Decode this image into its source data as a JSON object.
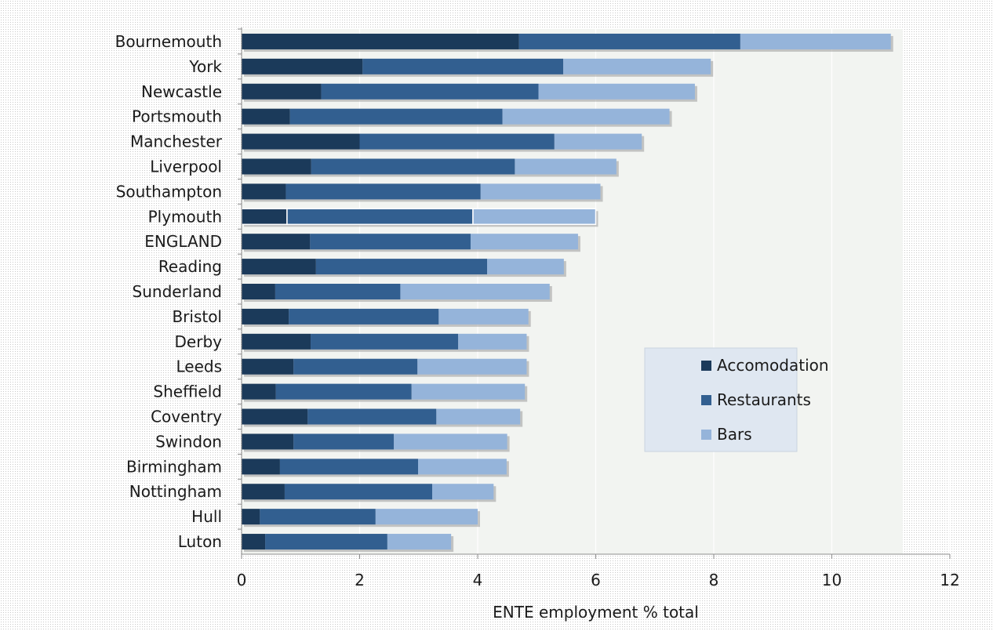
{
  "chart_data": {
    "type": "bar",
    "orientation": "horizontal",
    "stacked": true,
    "categories": [
      "Bournemouth",
      "York",
      "Newcastle",
      "Portsmouth",
      "Manchester",
      "Liverpool",
      "Southampton",
      "Plymouth",
      "ENGLAND",
      "Reading",
      "Sunderland",
      "Bristol",
      "Derby",
      "Leeds",
      "Sheffield",
      "Coventry",
      "Swindon",
      "Birmingham",
      "Nottingham",
      "Hull",
      "Luton"
    ],
    "series": [
      {
        "name": "Accomodation",
        "color": "#1b3a5a",
        "values": [
          4.7,
          2.05,
          1.35,
          0.82,
          2.0,
          1.18,
          0.75,
          0.77,
          1.16,
          1.26,
          0.57,
          0.8,
          1.17,
          0.88,
          0.58,
          1.12,
          0.88,
          0.65,
          0.73,
          0.31,
          0.4
        ]
      },
      {
        "name": "Restaurants",
        "color": "#325f90",
        "values": [
          3.75,
          3.4,
          3.68,
          3.6,
          3.3,
          3.45,
          3.3,
          3.15,
          2.72,
          2.9,
          2.12,
          2.54,
          2.5,
          2.1,
          2.3,
          2.18,
          1.7,
          2.34,
          2.5,
          1.96,
          2.07
        ]
      },
      {
        "name": "Bars",
        "color": "#95b4da",
        "values": [
          2.55,
          2.5,
          2.65,
          2.83,
          1.48,
          1.72,
          2.03,
          2.08,
          1.82,
          1.3,
          2.53,
          1.52,
          1.16,
          1.85,
          1.92,
          1.42,
          1.92,
          1.5,
          1.04,
          1.73,
          1.08
        ]
      }
    ],
    "highlighted_category": "Plymouth",
    "xlabel": "ENTE employment % total",
    "xlim": [
      0,
      12
    ],
    "xticks": [
      "0",
      "2",
      "4",
      "6",
      "8",
      "10",
      "12"
    ],
    "grid": "vertical gridlines",
    "legend_position": "right-center"
  },
  "colors": {
    "plot_background": "#f2f4f1",
    "gridline": "#ffffff",
    "legend_background": "#dfe7f1",
    "highlight_outline": "#ffffff"
  }
}
